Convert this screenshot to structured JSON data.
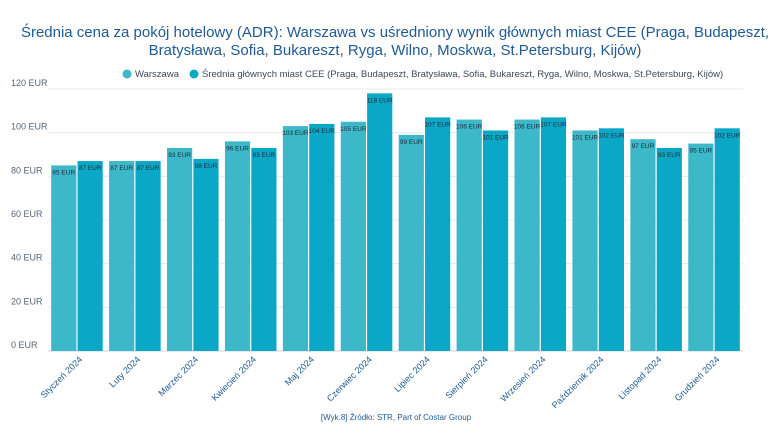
{
  "chart_data": {
    "type": "bar",
    "title_lines": [
      "Średnia cena za pokój hotelowy (ADR): Warszawa vs uśredniony wynik głównych miast CEE (Praga, Budapeszt,",
      "Bratysława, Sofia, Bukareszt, Ryga, Wilno, Moskwa, St.Petersburg, Kijów)"
    ],
    "categories": [
      "Styczeń 2024",
      "Luty 2024",
      "Marzec 2024",
      "Kwiecień 2024",
      "Maj 2024",
      "Czerwiec 2024",
      "Lipiec 2024",
      "Sierpień 2024",
      "Wrzesień 2024",
      "Październik 2024",
      "Listopad 2024",
      "Grudzień 2024"
    ],
    "series": [
      {
        "name": "Warszawa",
        "color": "#3cb8c8",
        "values": [
          85,
          87,
          93,
          96,
          103,
          105,
          99,
          106,
          106,
          101,
          97,
          95
        ],
        "labels": [
          "85 EUR",
          "87 EUR",
          "93 EUR",
          "96 EUR",
          "103 EUR",
          "105 EUR",
          "99 EUR",
          "106 EUR",
          "106 EUR",
          "101 EUR",
          "97 EUR",
          "95 EUR"
        ]
      },
      {
        "name": "Średnia głównych miast CEE (Praga, Budapeszt, Bratysława, Sofia, Bukareszt, Ryga, Wilno, Moskwa, St.Petersburg, Kijów)",
        "color": "#0aa8c6",
        "values": [
          87,
          87,
          88,
          93,
          104,
          118,
          107,
          101,
          107,
          102,
          93,
          102
        ],
        "labels": [
          "87 EUR",
          "87 EUR",
          "88 EUR",
          "93 EUR",
          "104 EUR",
          "118 EUR",
          "107 EUR",
          "101 EUR",
          "107 EUR",
          "102 EUR",
          "93 EUR",
          "102 EUR"
        ]
      }
    ],
    "ylim": [
      0,
      120
    ],
    "yticks": [
      0,
      20,
      40,
      60,
      80,
      100,
      120
    ],
    "ytick_labels": [
      "0 EUR",
      "20 EUR",
      "40 EUR",
      "60 EUR",
      "80 EUR",
      "100 EUR",
      "120 EUR"
    ],
    "grid": true,
    "legend_position": "top-center",
    "source": "[Wyk.8] Źródło: STR, Part of Costar Group"
  }
}
